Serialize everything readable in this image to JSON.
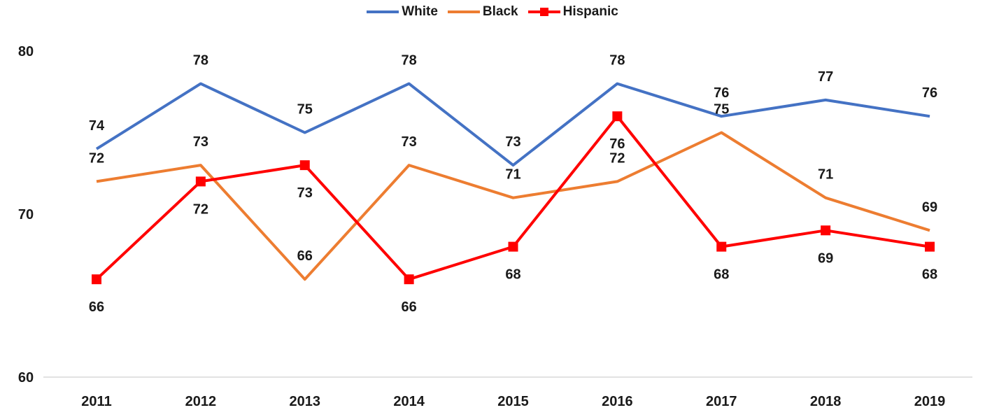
{
  "chart_data": {
    "type": "line",
    "categories": [
      "2011",
      "2012",
      "2013",
      "2014",
      "2015",
      "2016",
      "2017",
      "2018",
      "2019"
    ],
    "ylim": [
      60,
      80
    ],
    "yticks": [
      60,
      70,
      80
    ],
    "grid": false,
    "legend_position": "top-center",
    "series": [
      {
        "name": "White",
        "color": "#4472C4",
        "marker": "none",
        "label_pos": "above",
        "values": [
          74,
          78,
          75,
          78,
          73,
          78,
          76,
          77,
          76
        ]
      },
      {
        "name": "Black",
        "color": "#ED7D31",
        "marker": "none",
        "label_pos": "above",
        "values": [
          72,
          73,
          66,
          73,
          71,
          72,
          75,
          71,
          69
        ]
      },
      {
        "name": "Hispanic",
        "color": "#FF0000",
        "marker": "square",
        "label_pos": "below",
        "values": [
          66,
          72,
          73,
          66,
          68,
          76,
          68,
          69,
          68
        ]
      }
    ]
  }
}
